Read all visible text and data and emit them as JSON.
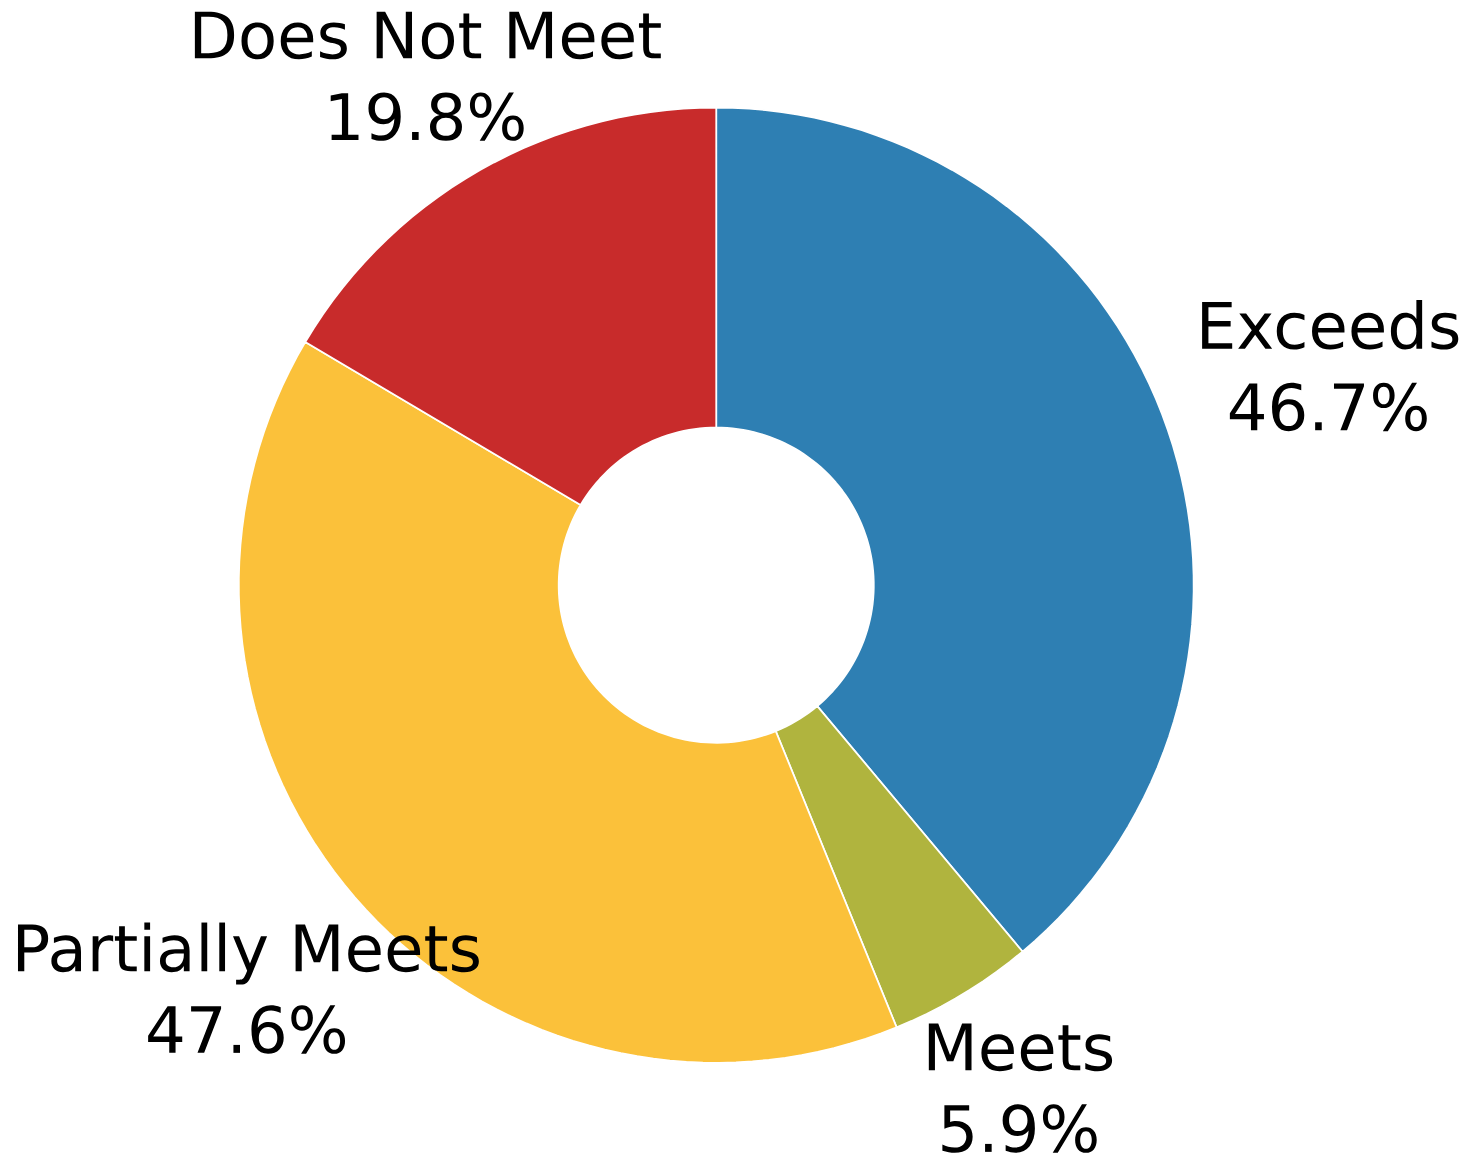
{
  "chart_data": {
    "type": "donut",
    "categories": [
      "Exceeds",
      "Meets",
      "Partially Meets",
      "Does Not Meet"
    ],
    "values": [
      46.7,
      5.9,
      47.6,
      19.8
    ],
    "value_labels": [
      "46.7%",
      "5.9%",
      "47.6%",
      "19.8%"
    ],
    "colors": [
      "#2e7fb3",
      "#b0b43e",
      "#fbc13a",
      "#c82b2b"
    ]
  }
}
